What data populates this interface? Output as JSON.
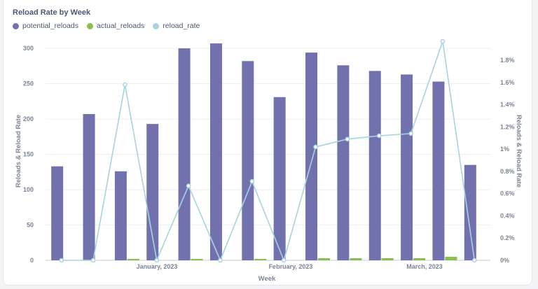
{
  "chart_data": {
    "type": "bar",
    "title": "Reload Rate by Week",
    "xlabel": "Week",
    "ylabel": "Reloads & Reload Rate",
    "y2label": "Reloads & Reload Rate",
    "x_tick_labels": [
      "January, 2023",
      "February, 2023",
      "March, 2023"
    ],
    "ylim": [
      0,
      310
    ],
    "y_ticks": [
      0,
      50,
      100,
      150,
      200,
      250,
      300
    ],
    "y2lim": [
      0,
      1.97
    ],
    "y2_ticks": [
      "0%",
      "0.2%",
      "0.4%",
      "0.6%",
      "0.8%",
      "1%",
      "1.2%",
      "1.4%",
      "1.6%",
      "1.8%"
    ],
    "y2_tick_values": [
      0,
      0.2,
      0.4,
      0.6,
      0.8,
      1.0,
      1.2,
      1.4,
      1.6,
      1.8
    ],
    "legend_position": "top-left",
    "grid": "horizontal",
    "series": [
      {
        "name": "potential_reloads",
        "kind": "bar",
        "axis": "left",
        "color": "#7172ad",
        "values": [
          133,
          207,
          126,
          193,
          300,
          307,
          282,
          231,
          294,
          276,
          268,
          263,
          253,
          135
        ]
      },
      {
        "name": "actual_reloads",
        "kind": "bar",
        "axis": "left",
        "color": "#88bf4d",
        "values": [
          0,
          0,
          2,
          0,
          2,
          0,
          2,
          0,
          3,
          3,
          3,
          3,
          5,
          0
        ]
      },
      {
        "name": "reload_rate",
        "kind": "line",
        "axis": "right",
        "color": "#a7d3df",
        "values": [
          0,
          0,
          1.58,
          0,
          0.67,
          0,
          0.71,
          0,
          1.02,
          1.09,
          1.12,
          1.14,
          1.97,
          0
        ]
      }
    ]
  }
}
